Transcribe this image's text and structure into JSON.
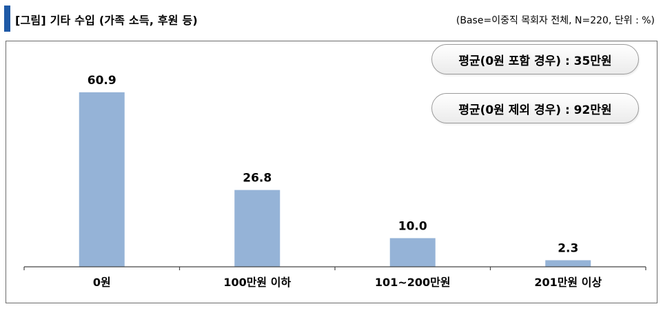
{
  "header": {
    "title": "[그림] 기타 수입 (가족 소득, 후원 등)",
    "base_note": "(Base=이중직 목회자 전체, N=220, 단위 : %)"
  },
  "callouts": {
    "avg_with_zero": "평균(0원 포함 경우) : 35만원",
    "avg_without_zero": "평균(0원 제외 경우) : 92만원"
  },
  "chart_data": {
    "type": "bar",
    "categories": [
      "0원",
      "100만원 이하",
      "101~200만원",
      "201만원 이상"
    ],
    "values": [
      60.9,
      26.8,
      10.0,
      2.3
    ],
    "value_labels": [
      "60.9",
      "26.8",
      "10.0",
      "2.3"
    ],
    "title": "",
    "xlabel": "",
    "ylabel": "",
    "ylim": [
      0,
      70
    ],
    "grid": false,
    "bar_color": "#95b3d7"
  }
}
